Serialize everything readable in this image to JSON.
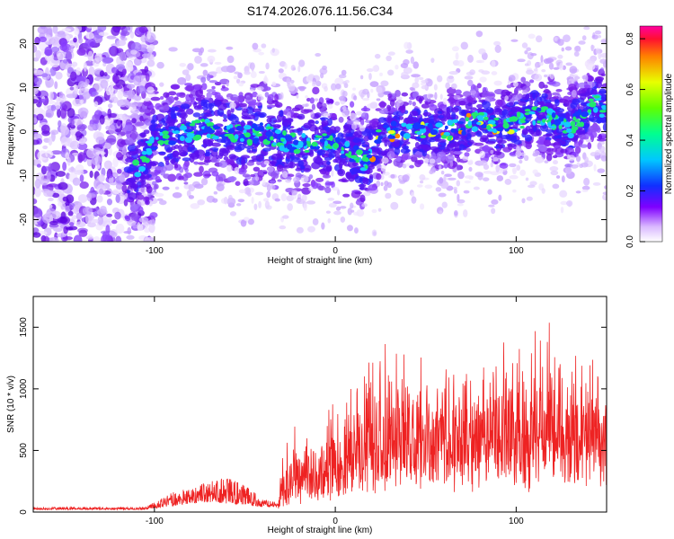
{
  "title": "S174.2026.076.11.56.C34",
  "chart_data": [
    {
      "type": "heatmap",
      "title": "S174.2026.076.11.56.C34",
      "xlabel": "Height of straight line (km)",
      "ylabel": "Frequency (Hz)",
      "xlim": [
        -167,
        150
      ],
      "ylim": [
        -25,
        24
      ],
      "xticks": [
        -100,
        0,
        100
      ],
      "yticks": [
        -20,
        -10,
        0,
        10,
        20
      ],
      "colorbar": {
        "label": "Normalized spectral amplitude",
        "range": [
          0,
          0.85
        ],
        "ticks": [
          0.0,
          0.2,
          0.4,
          0.6,
          0.8
        ],
        "tick_labels": [
          "0.0",
          "0.2",
          "0.4",
          "0.6",
          "0.8"
        ]
      },
      "ridge": {
        "x": [
          -110,
          -100,
          -90,
          -80,
          -70,
          -60,
          -50,
          -40,
          -30,
          -20,
          -10,
          0,
          10,
          15,
          20,
          25,
          30,
          40,
          50,
          60,
          70,
          80,
          90,
          100,
          110,
          120,
          130,
          140,
          145,
          150
        ],
        "freq": [
          -9,
          -2,
          -1,
          0,
          1,
          0,
          -1,
          0,
          -2,
          -3,
          -2,
          -3,
          -5,
          -7,
          -5,
          -1,
          0,
          0,
          0,
          0,
          1,
          3,
          1,
          2,
          4,
          3,
          1,
          5,
          7,
          4
        ]
      },
      "noise_region_xmax": -100
    },
    {
      "type": "line",
      "xlabel": "Height of straight line (km)",
      "ylabel": "SNR (10 * v/v)",
      "xlim": [
        -167,
        150
      ],
      "ylim": [
        0,
        1750
      ],
      "xticks": [
        -100,
        0,
        100
      ],
      "yticks": [
        0,
        500,
        1000,
        1500
      ],
      "series": [
        {
          "name": "SNR",
          "color": "#ee2222",
          "envelope_x": [
            -167,
            -105,
            -100,
            -90,
            -80,
            -70,
            -60,
            -50,
            -40,
            -32,
            -28,
            -25,
            -20,
            -10,
            0,
            10,
            20,
            30,
            40,
            50,
            60,
            70,
            80,
            90,
            100,
            110,
            120,
            130,
            140,
            150
          ],
          "envelope_base": [
            20,
            20,
            30,
            50,
            70,
            80,
            70,
            60,
            40,
            40,
            120,
            150,
            200,
            250,
            300,
            350,
            400,
            400,
            450,
            480,
            450,
            500,
            550,
            550,
            500,
            500,
            500,
            450,
            500,
            500
          ],
          "envelope_peak": [
            40,
            40,
            80,
            160,
            200,
            250,
            280,
            220,
            100,
            80,
            600,
            650,
            700,
            800,
            950,
            1200,
            1500,
            1450,
            1300,
            1300,
            1250,
            1350,
            1350,
            1450,
            1450,
            1600,
            1550,
            1350,
            1450,
            1450
          ]
        }
      ]
    }
  ]
}
